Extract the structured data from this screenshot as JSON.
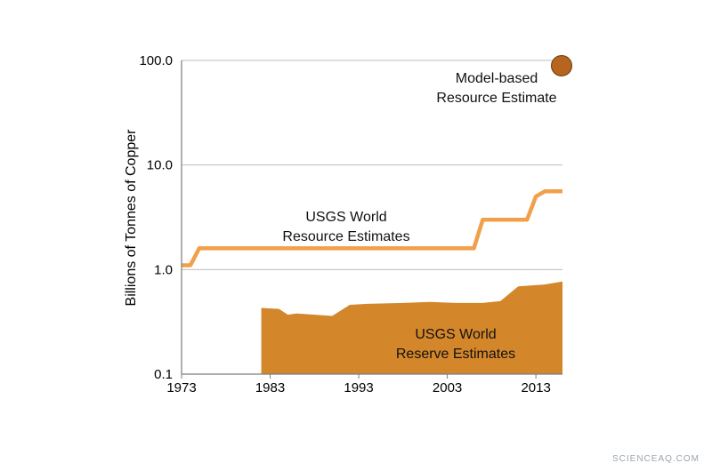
{
  "chart_data": {
    "type": "area",
    "scale_y": "log",
    "ylabel": "Billions of Tonnes of Copper",
    "xlabel": "",
    "xlim": [
      1973,
      2016
    ],
    "ylim": [
      0.1,
      100
    ],
    "x_ticks": [
      "1973",
      "1983",
      "1993",
      "2003",
      "2013"
    ],
    "y_ticks": [
      "0.1",
      "1.0",
      "10.0",
      "100.0"
    ],
    "grid": "horizontal",
    "colors": {
      "resource_line": "#f0a04b",
      "reserve_area": "#d4862a",
      "point": "#b5651d"
    },
    "series": [
      {
        "name": "USGS World\nResource Estimates",
        "kind": "line",
        "points": [
          [
            1973,
            1.1
          ],
          [
            1974,
            1.1
          ],
          [
            1975,
            1.6
          ],
          [
            2006,
            1.6
          ],
          [
            2007,
            3.0
          ],
          [
            2012,
            3.0
          ],
          [
            2013,
            5.0
          ],
          [
            2014,
            5.6
          ],
          [
            2016,
            5.6
          ]
        ]
      },
      {
        "name": "USGS World\nReserve Estimates",
        "kind": "area",
        "points": [
          [
            1982,
            0.43
          ],
          [
            1984,
            0.42
          ],
          [
            1985,
            0.37
          ],
          [
            1986,
            0.38
          ],
          [
            1990,
            0.36
          ],
          [
            1992,
            0.46
          ],
          [
            1994,
            0.47
          ],
          [
            1998,
            0.48
          ],
          [
            2001,
            0.49
          ],
          [
            2004,
            0.48
          ],
          [
            2007,
            0.48
          ],
          [
            2009,
            0.5
          ],
          [
            2011,
            0.69
          ],
          [
            2014,
            0.72
          ],
          [
            2016,
            0.77
          ]
        ]
      },
      {
        "name": "Model-based\nResource Estimate",
        "kind": "point",
        "points": [
          [
            2016,
            89
          ]
        ]
      }
    ]
  },
  "watermark": "SCIENCEAQ.COM"
}
